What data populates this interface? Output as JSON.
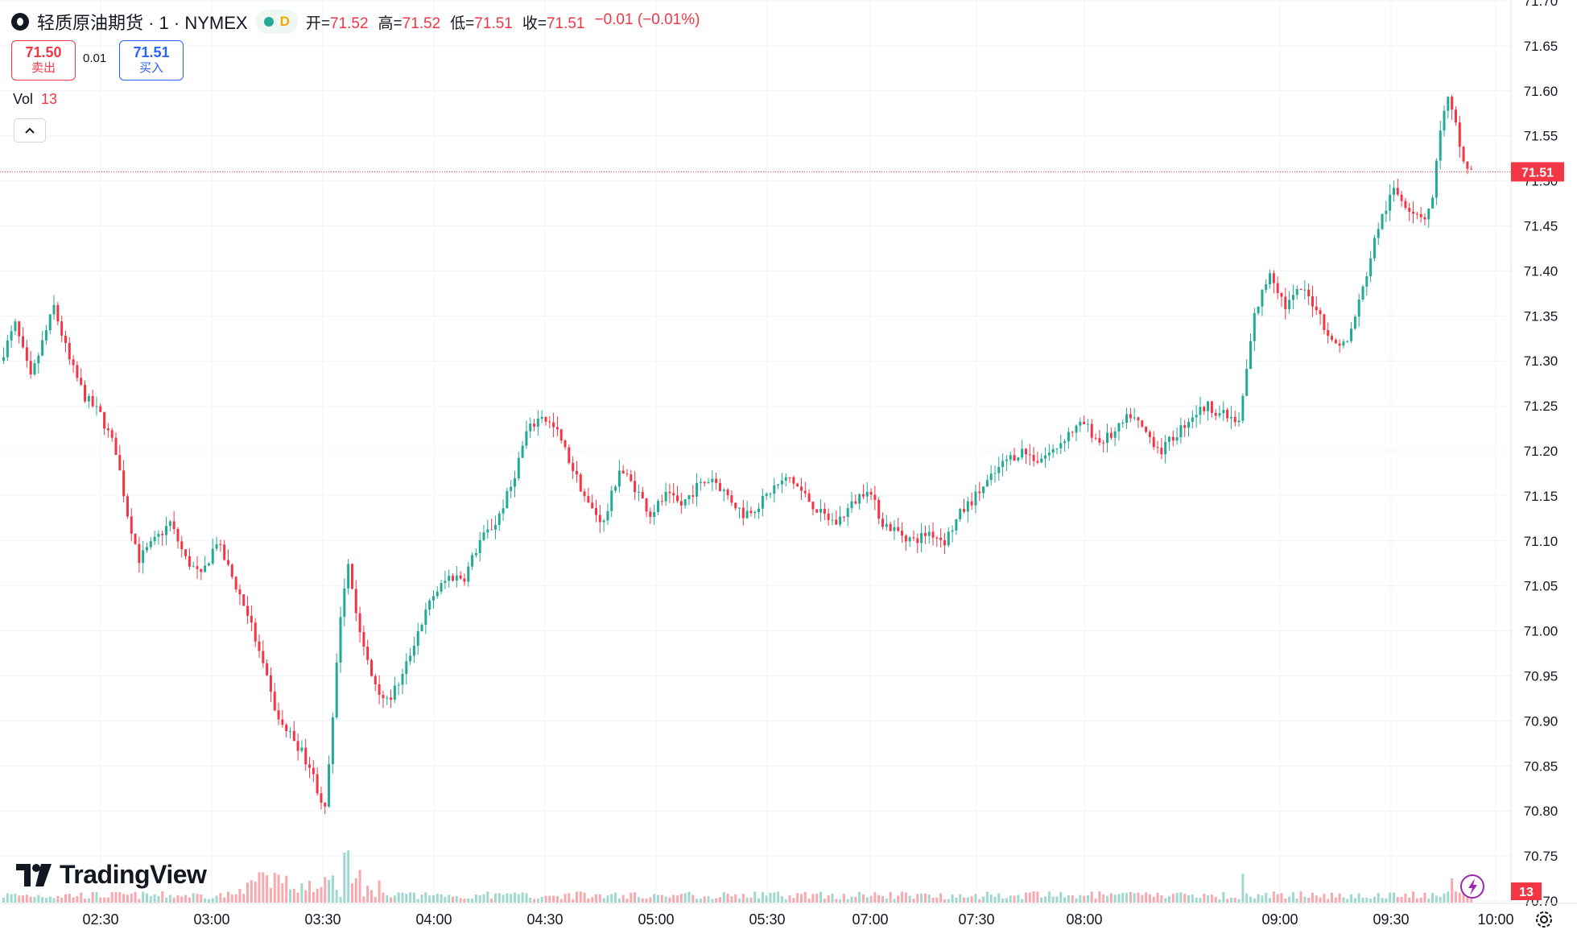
{
  "legend": {
    "symbol_title": "轻质原油期货 · 1 · NYMEX",
    "status_letter": "D",
    "open_label": "开=",
    "open_value": "71.52",
    "high_label": "高=",
    "high_value": "71.52",
    "low_label": "低=",
    "low_value": "71.51",
    "close_label": "收=",
    "close_value": "71.51",
    "change": "−0.01 (−0.01%)"
  },
  "trade": {
    "sell_price": "71.50",
    "sell_label": "卖出",
    "spread": "0.01",
    "buy_price": "71.51",
    "buy_label": "买入"
  },
  "volume_legend": {
    "label": "Vol",
    "value": "13"
  },
  "branding": {
    "logo_text": "TradingView"
  },
  "last_price_label": "71.51",
  "last_volume_label": "13",
  "colors": {
    "up": "#22ab94",
    "down": "#f23645",
    "up_volume": "#9fd8cf",
    "down_volume": "#f7a9ad",
    "grid": "#f0f3fa",
    "axis_text": "#131722"
  },
  "icons": [
    "drop-icon",
    "status-dot",
    "collapse-chevron-icon",
    "tradingview-logo-icon",
    "lightning-icon",
    "settings-gear-icon"
  ],
  "chart_data": {
    "type": "candlestick",
    "interval": "1 minute",
    "y_axis": {
      "ylim": [
        70.7,
        71.7
      ],
      "tick_labels": [
        "71.70",
        "71.65",
        "71.60",
        "71.55",
        "71.50",
        "71.45",
        "71.40",
        "71.35",
        "71.30",
        "71.25",
        "71.20",
        "71.15",
        "71.10",
        "71.05",
        "71.00",
        "70.95",
        "70.90",
        "70.85",
        "70.80",
        "70.75",
        "70.70"
      ]
    },
    "x_axis": {
      "tick_labels": [
        "02:30",
        "03:00",
        "03:30",
        "04:00",
        "04:30",
        "05:00",
        "05:30",
        "07:00",
        "07:30",
        "08:00",
        "09:00",
        "09:30",
        "10:00"
      ]
    },
    "price_path": [
      [
        0,
        71.3
      ],
      [
        4,
        71.34
      ],
      [
        8,
        71.28
      ],
      [
        14,
        71.36
      ],
      [
        18,
        71.3
      ],
      [
        22,
        71.26
      ],
      [
        26,
        71.24
      ],
      [
        30,
        71.2
      ],
      [
        33,
        71.13
      ],
      [
        36,
        71.08
      ],
      [
        40,
        71.1
      ],
      [
        44,
        71.12
      ],
      [
        48,
        71.08
      ],
      [
        52,
        71.06
      ],
      [
        56,
        71.1
      ],
      [
        60,
        71.06
      ],
      [
        64,
        71.02
      ],
      [
        68,
        70.96
      ],
      [
        72,
        70.9
      ],
      [
        76,
        70.88
      ],
      [
        80,
        70.85
      ],
      [
        84,
        70.8
      ],
      [
        86,
        70.9
      ],
      [
        88,
        71.02
      ],
      [
        90,
        71.08
      ],
      [
        92,
        71.02
      ],
      [
        94,
        70.98
      ],
      [
        96,
        70.95
      ],
      [
        100,
        70.92
      ],
      [
        104,
        70.95
      ],
      [
        108,
        71.0
      ],
      [
        112,
        71.04
      ],
      [
        116,
        71.06
      ],
      [
        120,
        71.06
      ],
      [
        124,
        71.1
      ],
      [
        128,
        71.12
      ],
      [
        132,
        71.16
      ],
      [
        136,
        71.22
      ],
      [
        140,
        71.24
      ],
      [
        144,
        71.22
      ],
      [
        148,
        71.18
      ],
      [
        152,
        71.14
      ],
      [
        156,
        71.12
      ],
      [
        160,
        71.18
      ],
      [
        164,
        71.16
      ],
      [
        168,
        71.13
      ],
      [
        172,
        71.15
      ],
      [
        176,
        71.14
      ],
      [
        180,
        71.16
      ],
      [
        184,
        71.17
      ],
      [
        188,
        71.15
      ],
      [
        192,
        71.13
      ],
      [
        196,
        71.14
      ],
      [
        200,
        71.16
      ],
      [
        204,
        71.17
      ],
      [
        208,
        71.15
      ],
      [
        212,
        71.13
      ],
      [
        216,
        71.12
      ],
      [
        220,
        71.14
      ],
      [
        224,
        71.16
      ],
      [
        228,
        71.12
      ],
      [
        232,
        71.11
      ],
      [
        236,
        71.1
      ],
      [
        240,
        71.11
      ],
      [
        244,
        71.1
      ],
      [
        248,
        71.13
      ],
      [
        252,
        71.15
      ],
      [
        256,
        71.17
      ],
      [
        260,
        71.19
      ],
      [
        264,
        71.2
      ],
      [
        268,
        71.19
      ],
      [
        272,
        71.2
      ],
      [
        276,
        71.22
      ],
      [
        280,
        71.23
      ],
      [
        284,
        71.21
      ],
      [
        288,
        71.22
      ],
      [
        292,
        71.24
      ],
      [
        296,
        71.22
      ],
      [
        300,
        71.2
      ],
      [
        304,
        71.22
      ],
      [
        308,
        71.24
      ],
      [
        312,
        71.25
      ],
      [
        316,
        71.24
      ],
      [
        320,
        71.23
      ],
      [
        324,
        71.35
      ],
      [
        328,
        71.4
      ],
      [
        332,
        71.36
      ],
      [
        336,
        71.38
      ],
      [
        340,
        71.36
      ],
      [
        344,
        71.32
      ],
      [
        348,
        71.32
      ],
      [
        352,
        71.38
      ],
      [
        356,
        71.45
      ],
      [
        360,
        71.49
      ],
      [
        364,
        71.47
      ],
      [
        368,
        71.46
      ],
      [
        370,
        71.48
      ],
      [
        372,
        71.56
      ],
      [
        374,
        71.59
      ],
      [
        376,
        71.56
      ],
      [
        378,
        71.52
      ],
      [
        380,
        71.51
      ]
    ],
    "candles": {
      "count": 380,
      "last_close": 71.51,
      "last_volume": 13
    }
  }
}
